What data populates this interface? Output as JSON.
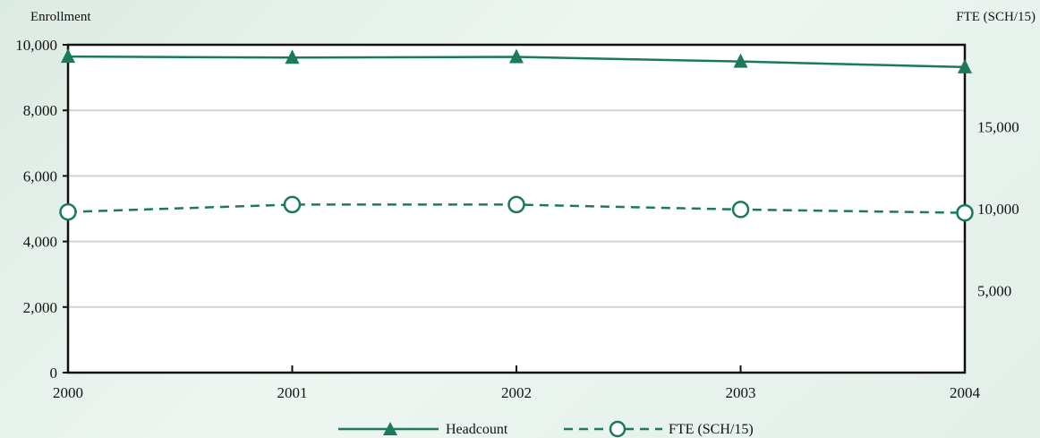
{
  "chart_data": {
    "type": "line",
    "y_axis_left_label": "Enrollment",
    "y_axis_right_label": "FTE (SCH/15)",
    "categories": [
      "2000",
      "2001",
      "2002",
      "2003",
      "2004"
    ],
    "y_left": {
      "min": 0,
      "max": 10000,
      "ticks": [
        0,
        2000,
        4000,
        6000,
        8000,
        10000
      ],
      "tick_labels": [
        "0",
        "2,000",
        "4,000",
        "6,000",
        "8,000",
        "10,000"
      ]
    },
    "y_right": {
      "min": 0,
      "max": 20000,
      "ticks": [
        5000,
        10000,
        15000
      ],
      "tick_labels": [
        "5,000",
        "10,000",
        "15,000"
      ]
    },
    "grid": true,
    "series": [
      {
        "name": "Headcount",
        "axis": "left",
        "marker": "triangle",
        "line": "solid",
        "values": [
          9640,
          9610,
          9630,
          9490,
          9320
        ]
      },
      {
        "name": "FTE (SCH/15)",
        "axis": "right",
        "marker": "circle",
        "line": "dashed",
        "values": [
          9800,
          10250,
          10250,
          9950,
          9750
        ]
      }
    ],
    "legend_position": "bottom-center",
    "colors": {
      "series": "#1a7a5a",
      "axis": "#111111",
      "grid": "#cfd4d6",
      "plot_bg": "#ffffff"
    }
  }
}
